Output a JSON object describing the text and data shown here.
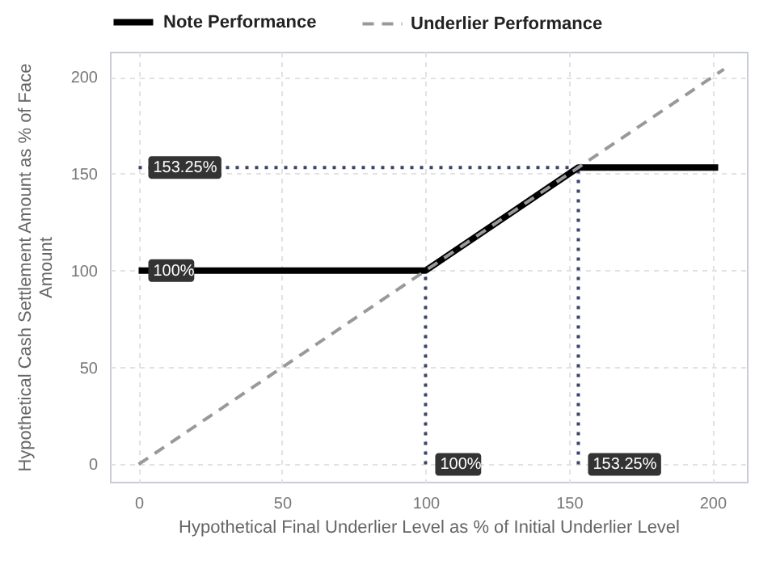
{
  "chart_data": {
    "type": "line",
    "xlabel": "Hypothetical Final Underlier Level as % of Initial Underlier Level",
    "ylabel": "Hypothetical Cash Settlement Amount as % of Face Amount",
    "xlim": [
      -10,
      212
    ],
    "ylim": [
      -9,
      213
    ],
    "xticks": [
      0,
      50,
      100,
      150,
      200
    ],
    "yticks": [
      0,
      50,
      100,
      150,
      200
    ],
    "grid": true,
    "legend": "top",
    "marker": "none",
    "series": [
      {
        "x": [
          0,
          153.25
        ],
        "values": [
          153.25,
          153.25
        ],
        "color": "#3a4466",
        "line_style": "dotted"
      },
      {
        "x": [
          100,
          100
        ],
        "values": [
          0,
          100
        ],
        "color": "#3a4466",
        "line_style": "dotted"
      },
      {
        "x": [
          153.25,
          153.25
        ],
        "values": [
          0,
          153.25
        ],
        "color": "#3a4466",
        "line_style": "dotted"
      },
      {
        "name": "Note Performance",
        "x": [
          0,
          100,
          153.25,
          202
        ],
        "values": [
          100,
          100,
          153.25,
          153.25
        ],
        "color": "#000000",
        "line_style": "solid"
      },
      {
        "name": "Underlier Performance",
        "x": [
          0,
          204
        ],
        "values": [
          0,
          204
        ],
        "color": "#999999",
        "line_style": "dashed"
      }
    ],
    "annotations": [
      {
        "text": "153.25%",
        "x": 0,
        "y": 153.25
      },
      {
        "text": "100%",
        "x": 0,
        "y": 100
      },
      {
        "text": "100%",
        "x": 100,
        "y": 0
      },
      {
        "text": "153.25%",
        "x": 153.25,
        "y": 0
      }
    ]
  }
}
